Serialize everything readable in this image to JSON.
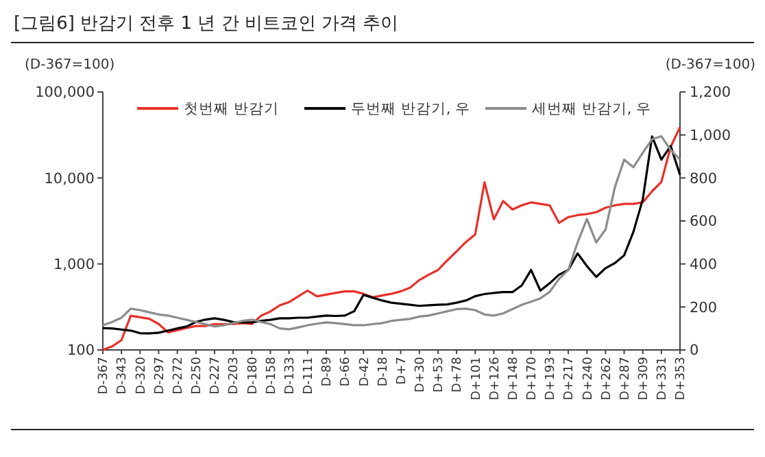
{
  "chart_data": {
    "type": "line",
    "title": "[그림6]    반감기 전후 1 년 간 비트코인 가격 추이",
    "ylabel": "(D-367=100)",
    "y2label": "(D-367=100)",
    "categories": [
      "D-367",
      null,
      "D-343",
      null,
      "D-320",
      null,
      "D-297",
      null,
      "D-272",
      null,
      "D-250",
      null,
      "D-227",
      null,
      "D-203",
      null,
      "D-180",
      null,
      "D-158",
      null,
      "D-133",
      null,
      "D-111",
      null,
      "D-89",
      null,
      "D-66",
      null,
      "D-42",
      null,
      "D-18",
      null,
      "D+7",
      null,
      "D+30",
      null,
      "D+53",
      null,
      "D+78",
      null,
      "D+101",
      null,
      "D+126",
      null,
      "D+148",
      null,
      "D+170",
      null,
      "D+193",
      null,
      "D+217",
      null,
      "D+240",
      null,
      "D+262",
      null,
      "D+287",
      null,
      "D+309",
      null,
      "D+331",
      null,
      "D+353"
    ],
    "series": [
      {
        "name": "첫번째 반감기",
        "color": "#e8302a",
        "values": [
          100,
          110,
          130,
          250,
          240,
          230,
          200,
          160,
          170,
          180,
          190,
          190,
          200,
          200,
          200,
          205,
          200,
          250,
          280,
          330,
          360,
          420,
          490,
          420,
          440,
          460,
          480,
          480,
          450,
          410,
          430,
          450,
          480,
          530,
          650,
          750,
          850,
          1100,
          1400,
          1800,
          2200,
          8900,
          3300,
          5400,
          4300,
          4800,
          5200,
          5000,
          4800,
          3000,
          3500,
          3700,
          3800,
          4000,
          4500,
          4800,
          5000,
          5000,
          5200,
          7000,
          9000,
          23000,
          39000
        ]
      },
      {
        "name": "두번째 반감기, 우",
        "color": "#000000",
        "axis": "y2",
        "values": [
          102,
          100,
          95,
          90,
          78,
          77,
          80,
          90,
          100,
          109,
          130,
          141,
          147,
          140,
          130,
          128,
          128,
          135,
          140,
          147,
          147,
          150,
          150,
          155,
          160,
          158,
          160,
          180,
          256,
          243,
          230,
          220,
          215,
          210,
          205,
          208,
          210,
          212,
          220,
          230,
          250,
          260,
          265,
          269,
          269,
          300,
          372,
          276,
          310,
          350,
          372,
          449,
          390,
          340,
          380,
          404,
          440,
          550,
          700,
          993,
          885,
          949,
          814
        ]
      },
      {
        "name": "세번째 반감기, 우",
        "color": "#8c8c8c",
        "axis": "y2",
        "values": [
          115,
          130,
          150,
          192,
          185,
          175,
          165,
          160,
          150,
          140,
          130,
          120,
          109,
          115,
          125,
          135,
          141,
          130,
          120,
          100,
          96,
          105,
          115,
          122,
          128,
          125,
          120,
          115,
          115,
          120,
          125,
          135,
          140,
          145,
          155,
          160,
          170,
          180,
          190,
          192,
          185,
          165,
          160,
          170,
          190,
          210,
          224,
          240,
          270,
          330,
          372,
          500,
          609,
          500,
          560,
          756,
          885,
          850,
          917,
          980,
          994,
          930,
          885
        ]
      }
    ],
    "log": "y",
    "ylim": [
      100,
      100000
    ],
    "yticks": [
      100,
      {
        "value": 1000,
        "label": "1,000"
      },
      {
        "value": 10000,
        "label": "10,000"
      },
      {
        "value": 100000,
        "label": "100,000"
      }
    ],
    "y2lim": [
      0,
      1200
    ],
    "y2ticks": [
      0,
      200,
      400,
      600,
      800,
      {
        "value": 1000,
        "label": "1,000"
      },
      {
        "value": 1200,
        "label": "1,200"
      }
    ],
    "grid": false,
    "legend": "top",
    "line_style": "solid",
    "marker": "none"
  }
}
